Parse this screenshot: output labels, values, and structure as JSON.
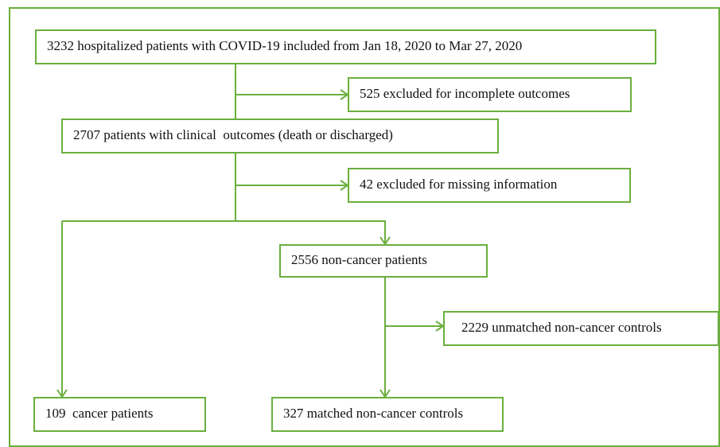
{
  "nodes": [
    {
      "label": "3232 hospitalized patients with COVID-19 included from Jan 18, 2020 to Mar 27, 2020"
    },
    {
      "label": "525 excluded for incomplete outcomes"
    },
    {
      "label": "2707 patients with clinical  outcomes (death or discharged)"
    },
    {
      "label": "42 excluded for missing information"
    },
    {
      "label": "2556 non-cancer patients"
    },
    {
      "label": "2229 unmatched non-cancer controls"
    },
    {
      "label": "109  cancer patients"
    },
    {
      "label": "327 matched non-cancer controls"
    }
  ]
}
